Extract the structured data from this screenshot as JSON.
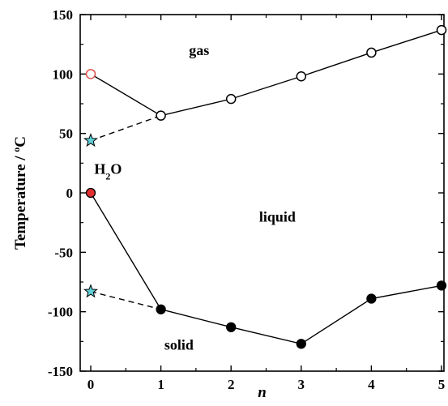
{
  "chart_data": {
    "type": "line",
    "xlabel": "n",
    "ylabel": "Temperature / ",
    "ylabel_unit": "oC",
    "xlim": [
      -0.1,
      5.05
    ],
    "ylim": [
      -150,
      150
    ],
    "x_ticks": [
      0,
      1,
      2,
      3,
      4,
      5
    ],
    "y_ticks": [
      150,
      100,
      50,
      0,
      -50,
      -100,
      -150
    ],
    "grid": false,
    "annotations": [
      {
        "text": "gas",
        "x": 1.4,
        "y": 120
      },
      {
        "text": "liquid",
        "x": 2.4,
        "y": -20
      },
      {
        "text": "solid",
        "x": 1.05,
        "y": -128
      },
      {
        "text": "H2O",
        "x": 0.05,
        "y": 20
      }
    ],
    "series": [
      {
        "marker": "open-circle",
        "color": "#000000",
        "x": [
          1,
          2,
          3,
          4,
          5
        ],
        "y": [
          65,
          79,
          98,
          118,
          137
        ]
      },
      {
        "marker": "filled-circle",
        "color": "#000000",
        "x": [
          1,
          2,
          3,
          4,
          5
        ],
        "y": [
          -98,
          -113,
          -127,
          -89,
          -78
        ]
      }
    ],
    "special_points": [
      {
        "x": 0,
        "y": 100,
        "marker": "open-circle",
        "color": "#e0504a"
      },
      {
        "x": 0,
        "y": 0,
        "marker": "filled-circle",
        "color": "#e03030"
      },
      {
        "x": 0,
        "y": 44,
        "marker": "star",
        "color": "#5fd0d8"
      },
      {
        "x": 0,
        "y": -83,
        "marker": "star",
        "color": "#5fd0d8"
      }
    ],
    "connectors": [
      {
        "style": "solid",
        "x": [
          0,
          1
        ],
        "y": [
          100,
          65
        ]
      },
      {
        "style": "solid",
        "x": [
          0,
          1
        ],
        "y": [
          0,
          -98
        ]
      },
      {
        "style": "dashed",
        "x": [
          0,
          1
        ],
        "y": [
          44,
          65
        ]
      },
      {
        "style": "dashed",
        "x": [
          0,
          1
        ],
        "y": [
          -83,
          -98
        ]
      }
    ]
  }
}
